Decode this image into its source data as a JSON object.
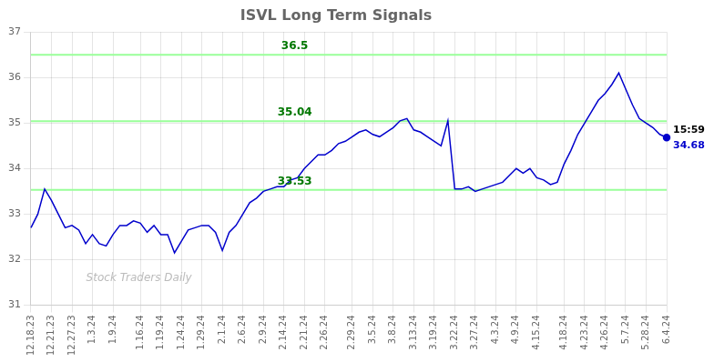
{
  "chart_data": {
    "type": "line",
    "title": "ISVL Long Term Signals",
    "watermark": "Stock Traders Daily",
    "categories": [
      "12.18.23",
      null,
      null,
      "12.21.23",
      null,
      null,
      "12.27.23",
      null,
      null,
      "1.3.24",
      null,
      null,
      "1.9.24",
      null,
      null,
      null,
      "1.16.24",
      null,
      null,
      "1.19.24",
      null,
      null,
      "1.24.24",
      null,
      null,
      "1.29.24",
      null,
      null,
      "2.1.24",
      null,
      null,
      "2.6.24",
      null,
      null,
      "2.9.24",
      null,
      null,
      "2.14.24",
      null,
      null,
      "2.21.24",
      null,
      null,
      "2.26.24",
      null,
      null,
      null,
      "2.29.24",
      null,
      null,
      "3.5.24",
      null,
      null,
      "3.8.24",
      null,
      null,
      "3.13.24",
      null,
      null,
      "3.19.24",
      null,
      null,
      "3.22.24",
      null,
      null,
      "3.27.24",
      null,
      null,
      "4.3.24",
      null,
      null,
      "4.9.24",
      null,
      null,
      "4.15.24",
      null,
      null,
      null,
      "4.18.24",
      null,
      null,
      "4.23.24",
      null,
      null,
      "4.26.24",
      null,
      null,
      "5.7.24",
      null,
      null,
      "5.28.24",
      null,
      null,
      "6.4.24"
    ],
    "values": [
      32.7,
      33.0,
      33.55,
      33.3,
      33.0,
      32.7,
      32.75,
      32.65,
      32.35,
      32.55,
      32.35,
      32.3,
      32.55,
      32.75,
      32.75,
      32.85,
      32.8,
      32.6,
      32.75,
      32.55,
      32.55,
      32.15,
      32.4,
      32.65,
      32.7,
      32.75,
      32.75,
      32.6,
      32.2,
      32.6,
      32.75,
      33.0,
      33.25,
      33.35,
      33.5,
      33.55,
      33.6,
      33.6,
      33.75,
      33.8,
      34.0,
      34.15,
      34.3,
      34.3,
      34.4,
      34.55,
      34.6,
      34.7,
      34.8,
      34.85,
      34.75,
      34.7,
      34.8,
      34.9,
      35.05,
      35.1,
      34.85,
      34.8,
      34.7,
      34.6,
      34.5,
      35.05,
      33.55,
      33.55,
      33.6,
      33.5,
      33.55,
      33.6,
      33.65,
      33.7,
      33.85,
      34.0,
      33.9,
      34.0,
      33.8,
      33.75,
      33.65,
      33.7,
      34.1,
      34.4,
      34.75,
      35.0,
      35.25,
      35.5,
      35.65,
      35.85,
      36.1,
      35.75,
      35.4,
      35.1,
      35.0,
      34.9,
      34.75,
      34.68
    ],
    "color": "#0000cc",
    "hlines": [
      {
        "y": 36.5,
        "label": "36.5",
        "color": "#99ff99"
      },
      {
        "y": 35.04,
        "label": "35.04",
        "color": "#99ff99"
      },
      {
        "y": 33.53,
        "label": "33.53",
        "color": "#99ff99"
      }
    ],
    "hline_label_color": "#007700",
    "end_labels": [
      {
        "text": "15:59",
        "color": "#000000"
      },
      {
        "text": "34.68",
        "color": "#0000cc"
      }
    ],
    "ylim": [
      31,
      37
    ],
    "yticks": [
      31,
      32,
      33,
      34,
      35,
      36,
      37
    ],
    "grid": true
  }
}
